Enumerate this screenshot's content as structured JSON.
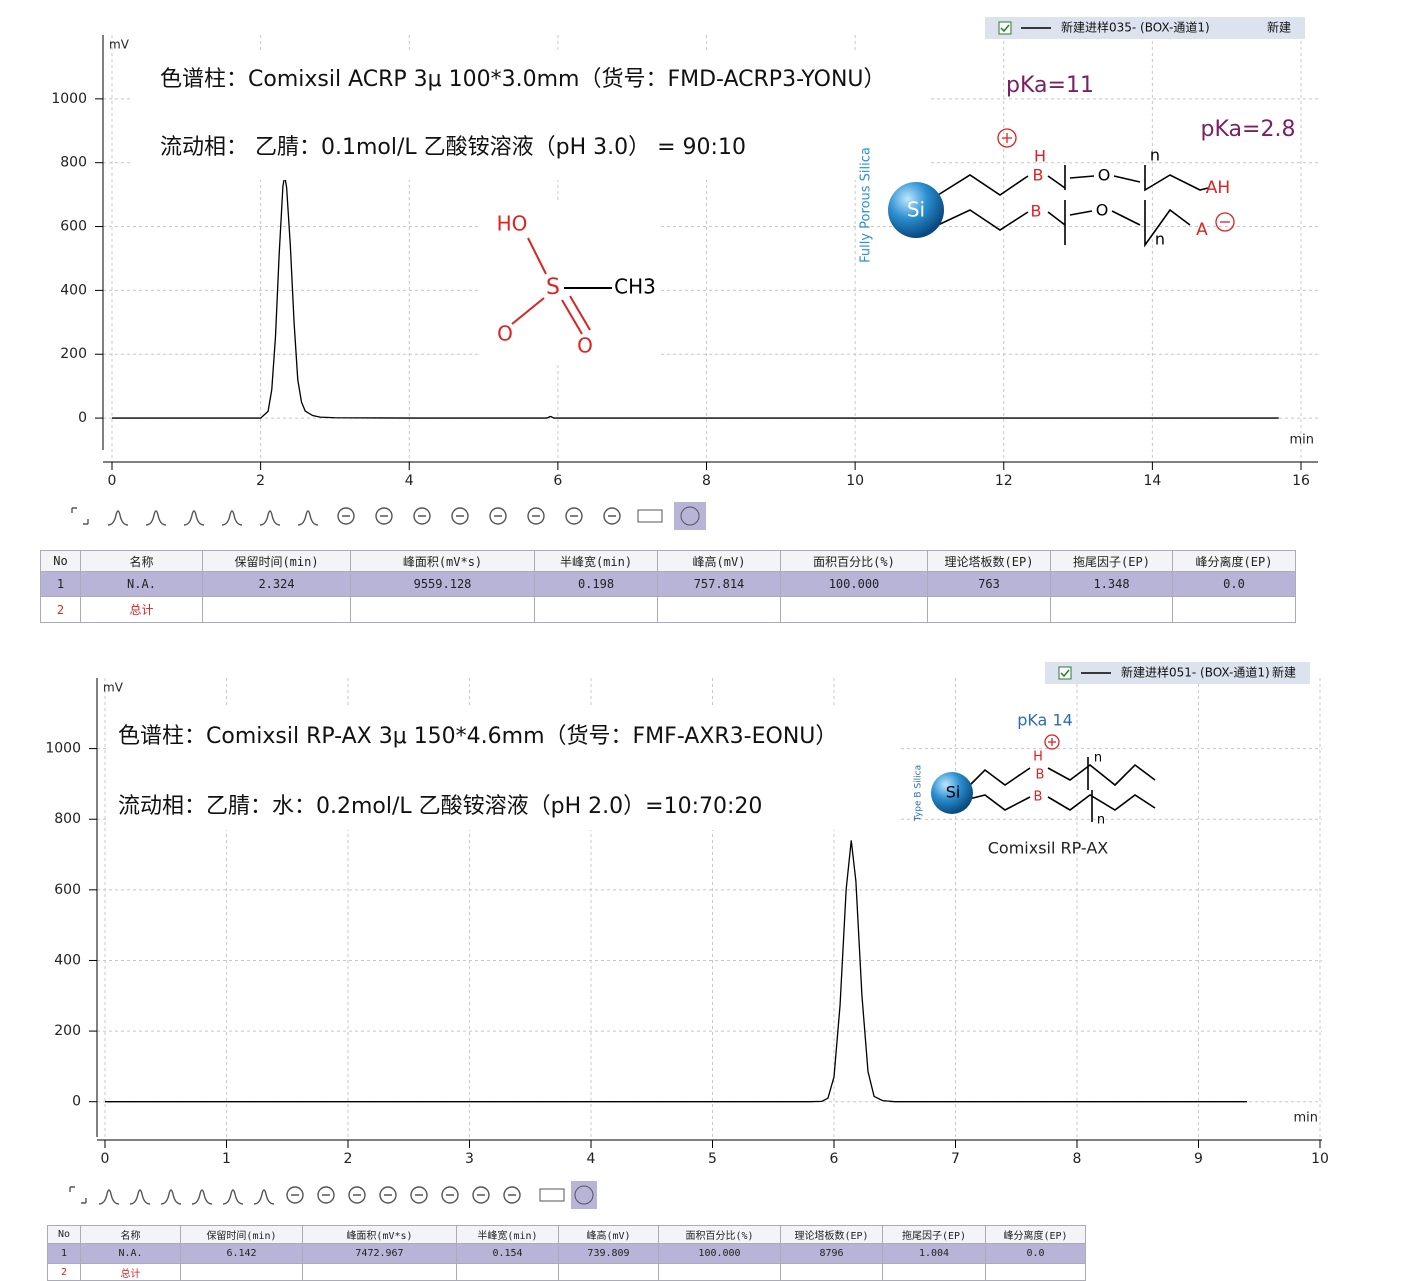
{
  "chart_data": [
    {
      "type": "line",
      "y_label": "mV",
      "x_label": "min",
      "xlim": [
        0,
        16
      ],
      "xticks": [
        0,
        2,
        4,
        6,
        8,
        10,
        12,
        14,
        16
      ],
      "ylim": [
        -100,
        1200
      ],
      "yticks": [
        0,
        200,
        400,
        600,
        800,
        1000
      ],
      "grid": true,
      "x": [
        0,
        0.5,
        1,
        1.5,
        2,
        2.1,
        2.15,
        2.2,
        2.25,
        2.3,
        2.324,
        2.35,
        2.4,
        2.45,
        2.5,
        2.55,
        2.6,
        2.7,
        2.8,
        3,
        4,
        5,
        5.85,
        5.9,
        5.95,
        8,
        10,
        12,
        14,
        15.7
      ],
      "series": [
        {
          "name": "新建进样035- (BOX-通道1)",
          "color": "#000000",
          "values": [
            0,
            0,
            0,
            0,
            0,
            21,
            89,
            255,
            515,
            727,
            757.8,
            722,
            540,
            300,
            120,
            50,
            22,
            8,
            3,
            1,
            0,
            0,
            0,
            5,
            0,
            0,
            0,
            0,
            0,
            0
          ]
        }
      ],
      "legend_extra": "新建",
      "annotations": [
        "色谱柱：Comixsil ACRP 3μ 100*3.0mm（货号：FMD-ACRP3-YONU）",
        "流动相：  乙腈：0.1mol/L  乙酸铵溶液（pH 3.0） = 90:10"
      ],
      "structure_labels": [
        "HO",
        "S",
        "CH3",
        "O",
        "O",
        "pKa=11",
        "pKa=2.8",
        "Fully Porous Silica",
        "Si",
        "H",
        "B",
        "B",
        "O",
        "O",
        "n",
        "n",
        "AH",
        "A"
      ]
    },
    {
      "type": "line",
      "y_label": "mV",
      "x_label": "min",
      "xlim": [
        0,
        10
      ],
      "xticks": [
        0,
        1,
        2,
        3,
        4,
        5,
        6,
        7,
        8,
        9,
        10
      ],
      "ylim": [
        -100,
        1200
      ],
      "yticks": [
        0,
        200,
        400,
        600,
        800,
        1000
      ],
      "grid": true,
      "x": [
        0,
        1,
        2,
        3,
        4,
        5,
        5.8,
        5.9,
        5.95,
        6,
        6.05,
        6.1,
        6.142,
        6.18,
        6.23,
        6.28,
        6.33,
        6.4,
        6.5,
        7,
        8,
        9,
        9.4
      ],
      "series": [
        {
          "name": "新建进样051- (BOX-通道1)",
          "color": "#000000",
          "values": [
            0,
            0,
            0,
            0,
            0,
            0,
            0,
            1,
            10,
            70,
            274,
            601,
            739.8,
            625,
            300,
            85,
            15,
            3,
            0,
            0,
            0,
            0,
            0
          ]
        }
      ],
      "legend_extra": "新建",
      "annotations": [
        "色谱柱：Comixsil RP-AX 3μ  150*4.6mm（货号：FMF-AXR3-EONU）",
        "流动相：乙腈：水：0.2mol/L 乙酸铵溶液（pH 2.0）=10:70:20"
      ],
      "structure_labels": [
        "pKa 14",
        "Si",
        "H",
        "B",
        "B",
        "n",
        "n",
        "Type B Silica",
        "Comixsil RP-AX"
      ]
    }
  ],
  "tables": [
    {
      "headers": [
        "No",
        "名称",
        "保留时间(min)",
        "峰面积(mV*s)",
        "半峰宽(min)",
        "峰高(mV)",
        "面积百分比(%)",
        "理论塔板数(EP)",
        "拖尾因子(EP)",
        "峰分离度(EP)"
      ],
      "rows": [
        [
          "1",
          "N.A.",
          "2.324",
          "9559.128",
          "0.198",
          "757.814",
          "100.000",
          "763",
          "1.348",
          "0.0"
        ],
        [
          "2",
          "总计"
        ]
      ]
    },
    {
      "headers": [
        "No",
        "名称",
        "保留时间(min)",
        "峰面积(mV*s)",
        "半峰宽(min)",
        "峰高(mV)",
        "面积百分比(%)",
        "理论塔板数(EP)",
        "拖尾因子(EP)",
        "峰分离度(EP)"
      ],
      "rows": [
        [
          "1",
          "N.A.",
          "6.142",
          "7472.967",
          "0.154",
          "739.809",
          "100.000",
          "8796",
          "1.004",
          "0.0"
        ],
        [
          "2",
          "总计"
        ]
      ]
    }
  ]
}
